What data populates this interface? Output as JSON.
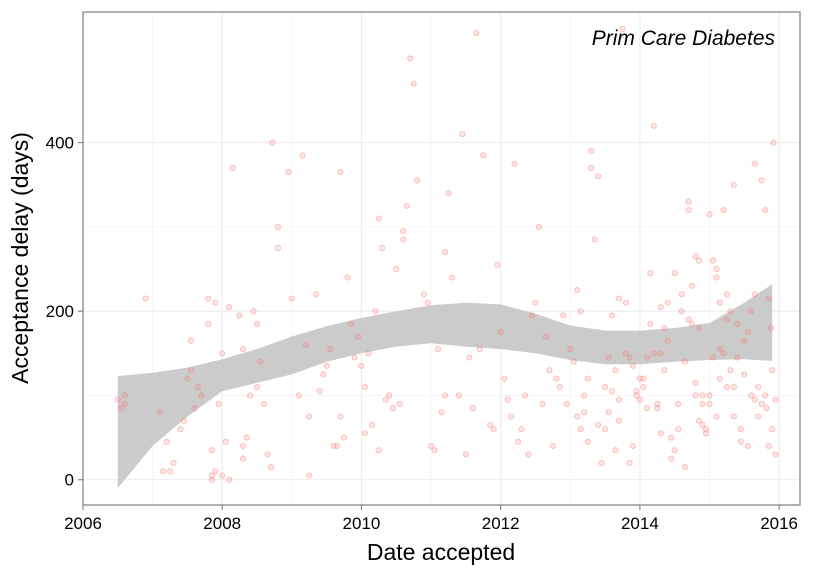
{
  "chart_data": {
    "type": "scatter",
    "title": "",
    "annotation": "Prim Care Diabetes",
    "xlabel": "Date accepted",
    "ylabel": "Acceptance delay (days)",
    "xlim": [
      2006.0,
      2016.3
    ],
    "ylim": [
      -30,
      555
    ],
    "x_ticks": [
      2006,
      2008,
      2010,
      2012,
      2014,
      2016
    ],
    "x_tick_labels": [
      "2006",
      "2008",
      "2010",
      "2012",
      "2014",
      "2016"
    ],
    "y_ticks": [
      0,
      200,
      400
    ],
    "y_tick_labels": [
      "0",
      "200",
      "400"
    ],
    "grid": true,
    "legend": "none",
    "colors": {
      "points": "#f8766d",
      "band": "#c8c8c8",
      "grid": "#ebebeb",
      "frame": "#7f7f7f"
    },
    "points": [
      [
        2006.5,
        95
      ],
      [
        2006.55,
        85
      ],
      [
        2006.6,
        100
      ],
      [
        2006.6,
        90
      ],
      [
        2006.9,
        215
      ],
      [
        2007.1,
        80
      ],
      [
        2007.15,
        10
      ],
      [
        2007.2,
        45
      ],
      [
        2007.25,
        10
      ],
      [
        2007.3,
        20
      ],
      [
        2007.4,
        60
      ],
      [
        2007.45,
        70
      ],
      [
        2007.5,
        120
      ],
      [
        2007.55,
        130
      ],
      [
        2007.55,
        165
      ],
      [
        2007.6,
        85
      ],
      [
        2007.65,
        110
      ],
      [
        2007.7,
        100
      ],
      [
        2007.8,
        215
      ],
      [
        2007.8,
        185
      ],
      [
        2007.85,
        5
      ],
      [
        2007.85,
        0
      ],
      [
        2007.85,
        35
      ],
      [
        2007.9,
        10
      ],
      [
        2007.9,
        210
      ],
      [
        2007.95,
        90
      ],
      [
        2008.0,
        150
      ],
      [
        2008.0,
        5
      ],
      [
        2008.05,
        45
      ],
      [
        2008.1,
        0
      ],
      [
        2008.1,
        205
      ],
      [
        2008.15,
        370
      ],
      [
        2008.25,
        195
      ],
      [
        2008.3,
        155
      ],
      [
        2008.3,
        25
      ],
      [
        2008.3,
        40
      ],
      [
        2008.35,
        50
      ],
      [
        2008.4,
        100
      ],
      [
        2008.45,
        200
      ],
      [
        2008.5,
        185
      ],
      [
        2008.5,
        110
      ],
      [
        2008.55,
        140
      ],
      [
        2008.6,
        90
      ],
      [
        2008.65,
        30
      ],
      [
        2008.7,
        15
      ],
      [
        2008.72,
        400
      ],
      [
        2008.8,
        300
      ],
      [
        2008.8,
        275
      ],
      [
        2008.95,
        365
      ],
      [
        2009.0,
        215
      ],
      [
        2009.1,
        100
      ],
      [
        2009.15,
        385
      ],
      [
        2009.2,
        160
      ],
      [
        2009.25,
        75
      ],
      [
        2009.25,
        5
      ],
      [
        2009.35,
        220
      ],
      [
        2009.4,
        105
      ],
      [
        2009.45,
        125
      ],
      [
        2009.5,
        135
      ],
      [
        2009.55,
        155
      ],
      [
        2009.6,
        40
      ],
      [
        2009.65,
        40
      ],
      [
        2009.7,
        365
      ],
      [
        2009.7,
        75
      ],
      [
        2009.75,
        50
      ],
      [
        2009.8,
        240
      ],
      [
        2009.85,
        185
      ],
      [
        2009.9,
        145
      ],
      [
        2009.95,
        170
      ],
      [
        2010.0,
        135
      ],
      [
        2010.05,
        110
      ],
      [
        2010.05,
        55
      ],
      [
        2010.1,
        150
      ],
      [
        2010.15,
        65
      ],
      [
        2010.2,
        200
      ],
      [
        2010.25,
        35
      ],
      [
        2010.25,
        310
      ],
      [
        2010.3,
        275
      ],
      [
        2010.35,
        95
      ],
      [
        2010.4,
        100
      ],
      [
        2010.45,
        85
      ],
      [
        2010.5,
        250
      ],
      [
        2010.55,
        90
      ],
      [
        2010.6,
        295
      ],
      [
        2010.6,
        285
      ],
      [
        2010.65,
        325
      ],
      [
        2010.7,
        500
      ],
      [
        2010.75,
        470
      ],
      [
        2010.8,
        355
      ],
      [
        2010.9,
        220
      ],
      [
        2010.95,
        210
      ],
      [
        2011.0,
        40
      ],
      [
        2011.05,
        35
      ],
      [
        2011.1,
        155
      ],
      [
        2011.15,
        80
      ],
      [
        2011.2,
        100
      ],
      [
        2011.2,
        270
      ],
      [
        2011.25,
        340
      ],
      [
        2011.3,
        240
      ],
      [
        2011.4,
        100
      ],
      [
        2011.45,
        410
      ],
      [
        2011.5,
        30
      ],
      [
        2011.55,
        145
      ],
      [
        2011.6,
        85
      ],
      [
        2011.65,
        530
      ],
      [
        2011.7,
        155
      ],
      [
        2011.75,
        385
      ],
      [
        2011.85,
        65
      ],
      [
        2011.9,
        60
      ],
      [
        2011.95,
        255
      ],
      [
        2012.0,
        175
      ],
      [
        2012.05,
        120
      ],
      [
        2012.1,
        95
      ],
      [
        2012.15,
        75
      ],
      [
        2012.2,
        375
      ],
      [
        2012.25,
        45
      ],
      [
        2012.3,
        60
      ],
      [
        2012.35,
        100
      ],
      [
        2012.4,
        30
      ],
      [
        2012.45,
        195
      ],
      [
        2012.5,
        210
      ],
      [
        2012.55,
        300
      ],
      [
        2012.6,
        90
      ],
      [
        2012.65,
        170
      ],
      [
        2012.7,
        130
      ],
      [
        2012.75,
        40
      ],
      [
        2012.8,
        120
      ],
      [
        2012.85,
        110
      ],
      [
        2012.9,
        195
      ],
      [
        2012.95,
        90
      ],
      [
        2013.0,
        155
      ],
      [
        2013.05,
        140
      ],
      [
        2013.1,
        75
      ],
      [
        2013.15,
        200
      ],
      [
        2013.2,
        80
      ],
      [
        2013.25,
        45
      ],
      [
        2013.3,
        390
      ],
      [
        2013.35,
        285
      ],
      [
        2013.4,
        360
      ],
      [
        2013.45,
        20
      ],
      [
        2013.5,
        60
      ],
      [
        2013.55,
        80
      ],
      [
        2013.6,
        105
      ],
      [
        2013.65,
        130
      ],
      [
        2013.7,
        95
      ],
      [
        2013.75,
        535
      ],
      [
        2013.8,
        210
      ],
      [
        2013.85,
        20
      ],
      [
        2013.9,
        40
      ],
      [
        2013.95,
        105
      ],
      [
        2014.0,
        120
      ],
      [
        2014.05,
        110
      ],
      [
        2014.1,
        145
      ],
      [
        2014.15,
        185
      ],
      [
        2014.2,
        420
      ],
      [
        2014.25,
        85
      ],
      [
        2014.3,
        55
      ],
      [
        2014.35,
        180
      ],
      [
        2014.4,
        165
      ],
      [
        2014.45,
        50
      ],
      [
        2014.5,
        35
      ],
      [
        2014.55,
        90
      ],
      [
        2014.6,
        200
      ],
      [
        2014.65,
        140
      ],
      [
        2014.7,
        330
      ],
      [
        2014.75,
        185
      ],
      [
        2014.8,
        115
      ],
      [
        2014.85,
        180
      ],
      [
        2014.9,
        100
      ],
      [
        2014.95,
        60
      ],
      [
        2015.0,
        100
      ],
      [
        2015.05,
        145
      ],
      [
        2015.1,
        75
      ],
      [
        2015.15,
        210
      ],
      [
        2015.2,
        320
      ],
      [
        2015.25,
        190
      ],
      [
        2015.3,
        130
      ],
      [
        2015.35,
        110
      ],
      [
        2015.4,
        185
      ],
      [
        2015.45,
        45
      ],
      [
        2015.5,
        125
      ],
      [
        2015.55,
        40
      ],
      [
        2015.6,
        200
      ],
      [
        2015.65,
        220
      ],
      [
        2015.7,
        110
      ],
      [
        2015.75,
        355
      ],
      [
        2015.8,
        100
      ],
      [
        2015.85,
        40
      ],
      [
        2015.9,
        60
      ],
      [
        2015.95,
        30
      ],
      [
        2013.6,
        195
      ],
      [
        2013.7,
        215
      ],
      [
        2013.8,
        150
      ],
      [
        2013.85,
        145
      ],
      [
        2013.9,
        135
      ],
      [
        2013.95,
        100
      ],
      [
        2014.0,
        95
      ],
      [
        2014.1,
        85
      ],
      [
        2014.2,
        150
      ],
      [
        2014.3,
        205
      ],
      [
        2014.4,
        210
      ],
      [
        2014.5,
        245
      ],
      [
        2014.6,
        220
      ],
      [
        2014.7,
        190
      ],
      [
        2014.75,
        230
      ],
      [
        2014.8,
        100
      ],
      [
        2014.85,
        70
      ],
      [
        2014.9,
        65
      ],
      [
        2014.95,
        55
      ],
      [
        2015.0,
        315
      ],
      [
        2015.05,
        260
      ],
      [
        2015.1,
        250
      ],
      [
        2015.15,
        155
      ],
      [
        2015.2,
        150
      ],
      [
        2015.25,
        220
      ],
      [
        2015.3,
        200
      ],
      [
        2015.35,
        350
      ],
      [
        2015.4,
        145
      ],
      [
        2015.5,
        165
      ],
      [
        2015.6,
        100
      ],
      [
        2015.65,
        95
      ],
      [
        2015.7,
        75
      ],
      [
        2015.75,
        90
      ],
      [
        2015.8,
        320
      ],
      [
        2015.82,
        85
      ],
      [
        2015.85,
        215
      ],
      [
        2015.88,
        180
      ],
      [
        2015.9,
        130
      ],
      [
        2015.92,
        400
      ],
      [
        2015.95,
        95
      ],
      [
        2013.1,
        225
      ],
      [
        2013.15,
        60
      ],
      [
        2013.2,
        100
      ],
      [
        2013.25,
        120
      ],
      [
        2013.3,
        370
      ],
      [
        2013.4,
        65
      ],
      [
        2013.5,
        110
      ],
      [
        2013.55,
        145
      ],
      [
        2013.65,
        35
      ],
      [
        2013.7,
        70
      ],
      [
        2014.05,
        120
      ],
      [
        2014.15,
        245
      ],
      [
        2014.25,
        90
      ],
      [
        2014.3,
        150
      ],
      [
        2014.35,
        130
      ],
      [
        2014.45,
        25
      ],
      [
        2014.55,
        60
      ],
      [
        2014.65,
        15
      ],
      [
        2014.7,
        320
      ],
      [
        2014.8,
        265
      ],
      [
        2014.85,
        260
      ],
      [
        2014.9,
        90
      ],
      [
        2015.0,
        90
      ],
      [
        2015.1,
        240
      ],
      [
        2015.15,
        120
      ],
      [
        2015.25,
        110
      ],
      [
        2015.35,
        75
      ],
      [
        2015.45,
        60
      ],
      [
        2015.55,
        175
      ],
      [
        2015.65,
        375
      ]
    ],
    "smooth_lower": [
      [
        2006.5,
        -10
      ],
      [
        2007.0,
        40
      ],
      [
        2007.5,
        75
      ],
      [
        2008.0,
        105
      ],
      [
        2008.5,
        115
      ],
      [
        2009.0,
        125
      ],
      [
        2009.5,
        140
      ],
      [
        2010.0,
        150
      ],
      [
        2010.5,
        158
      ],
      [
        2011.0,
        162
      ],
      [
        2011.5,
        158
      ],
      [
        2012.0,
        155
      ],
      [
        2012.5,
        150
      ],
      [
        2013.0,
        142
      ],
      [
        2013.5,
        137
      ],
      [
        2014.0,
        137
      ],
      [
        2014.5,
        140
      ],
      [
        2015.0,
        142
      ],
      [
        2015.5,
        143
      ],
      [
        2015.9,
        141
      ]
    ],
    "smooth_upper": [
      [
        2006.5,
        123
      ],
      [
        2007.0,
        127
      ],
      [
        2007.5,
        133
      ],
      [
        2008.0,
        143
      ],
      [
        2008.5,
        155
      ],
      [
        2009.0,
        170
      ],
      [
        2009.5,
        182
      ],
      [
        2010.0,
        192
      ],
      [
        2010.5,
        200
      ],
      [
        2011.0,
        207
      ],
      [
        2011.5,
        210
      ],
      [
        2012.0,
        208
      ],
      [
        2012.5,
        197
      ],
      [
        2013.0,
        183
      ],
      [
        2013.5,
        177
      ],
      [
        2014.0,
        177
      ],
      [
        2014.5,
        180
      ],
      [
        2015.0,
        186
      ],
      [
        2015.5,
        210
      ],
      [
        2015.9,
        232
      ]
    ]
  }
}
